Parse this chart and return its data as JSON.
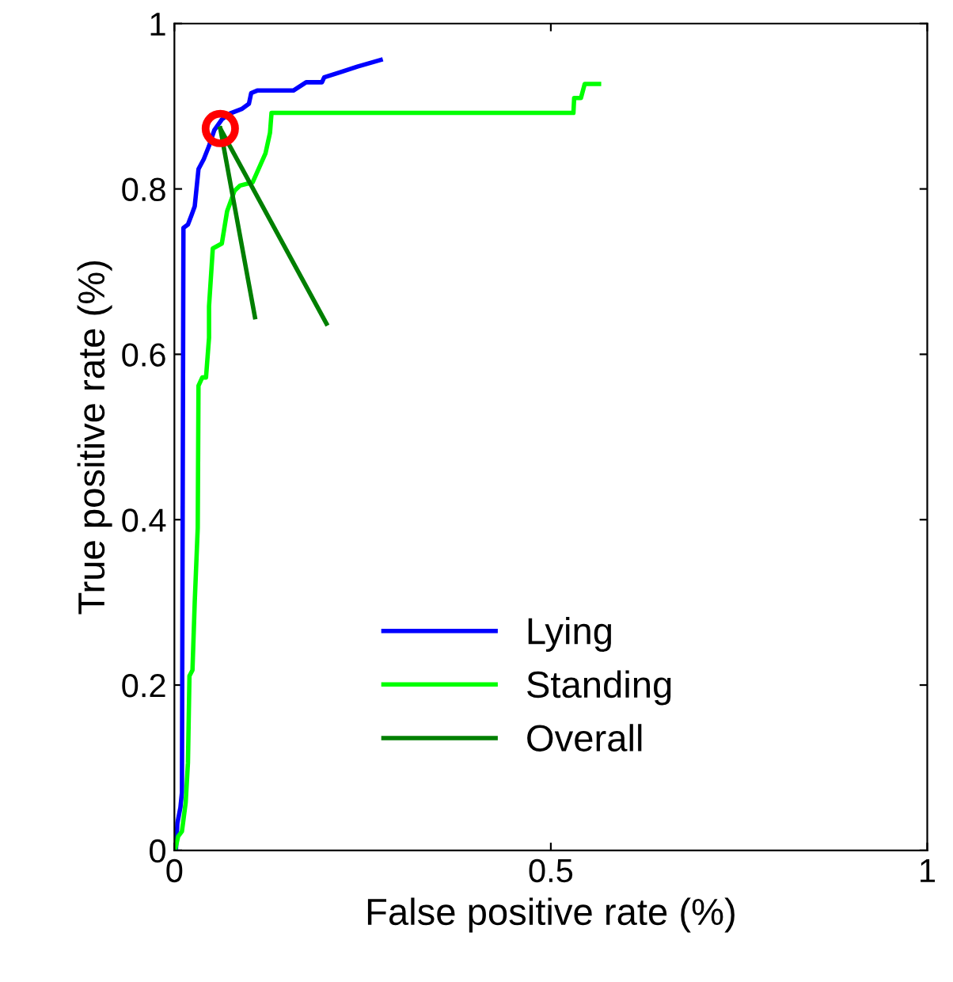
{
  "chart_data": {
    "type": "line",
    "xlabel": "False positive rate (%)",
    "ylabel": "True positive rate (%)",
    "xlim": [
      0,
      1
    ],
    "ylim": [
      0,
      1
    ],
    "xticks": [
      0,
      0.5,
      1
    ],
    "yticks": [
      0,
      0.2,
      0.4,
      0.6,
      0.8,
      1
    ],
    "grid": false,
    "legend": "bottom",
    "line_style": "solid",
    "series": [
      {
        "name": "Lying",
        "color": "#0000ff",
        "x": [
          0.002,
          0.004,
          0.008,
          0.01,
          0.012,
          0.018,
          0.023,
          0.027,
          0.032,
          0.039,
          0.046,
          0.053,
          0.063,
          0.073,
          0.09,
          0.099,
          0.102,
          0.11,
          0.158,
          0.175,
          0.196,
          0.199,
          0.223,
          0.243,
          0.274
        ],
        "values": [
          0,
          0.033,
          0.052,
          0.07,
          0.753,
          0.757,
          0.769,
          0.779,
          0.824,
          0.836,
          0.852,
          0.871,
          0.884,
          0.891,
          0.897,
          0.903,
          0.916,
          0.919,
          0.919,
          0.929,
          0.929,
          0.935,
          0.942,
          0.948,
          0.956
        ]
      },
      {
        "name": "Standing",
        "color": "#00ff00",
        "x": [
          0.001,
          0.005,
          0.01,
          0.015,
          0.018,
          0.02,
          0.024,
          0.027,
          0.031,
          0.032,
          0.037,
          0.042,
          0.046,
          0.046,
          0.051,
          0.063,
          0.07,
          0.08,
          0.087,
          0.104,
          0.121,
          0.127,
          0.129,
          0.53,
          0.531,
          0.54,
          0.545,
          0.564
        ],
        "values": [
          0.001,
          0.017,
          0.023,
          0.058,
          0.106,
          0.211,
          0.218,
          0.3,
          0.39,
          0.562,
          0.572,
          0.572,
          0.62,
          0.658,
          0.728,
          0.734,
          0.773,
          0.798,
          0.804,
          0.808,
          0.843,
          0.868,
          0.892,
          0.892,
          0.91,
          0.91,
          0.927,
          0.927
        ]
      },
      {
        "name": "Overall",
        "color": "#007f00",
        "x": [
          0.061,
          0.107
        ],
        "values": [
          0.873,
          0.645
        ]
      },
      {
        "color": "#007f00",
        "x": [
          0.061,
          0.202
        ],
        "values": [
          0.873,
          0.637
        ]
      },
      {
        "type": "scatter",
        "marker": "circle",
        "color": "#ff0000",
        "x": [
          0.061
        ],
        "values": [
          0.873
        ]
      }
    ]
  }
}
